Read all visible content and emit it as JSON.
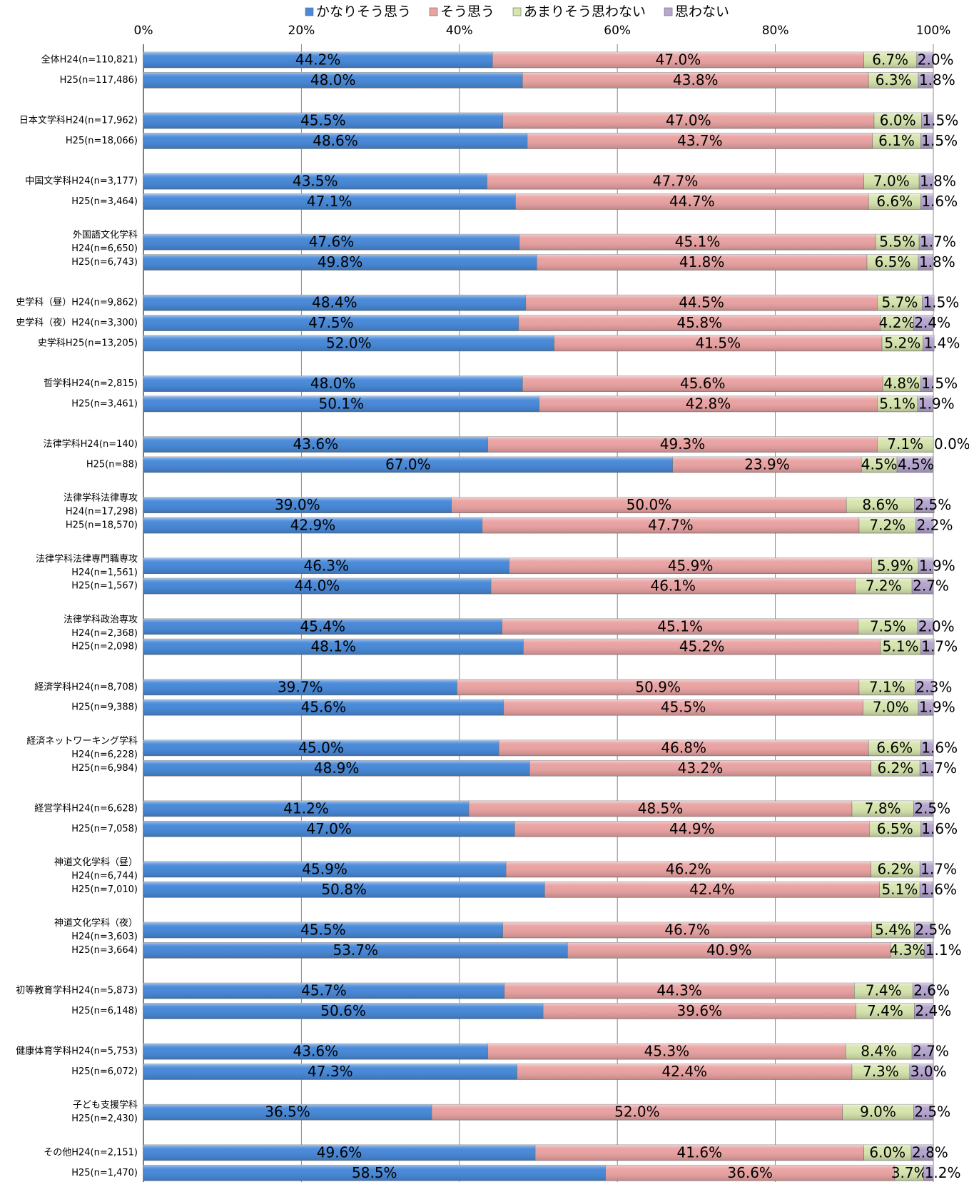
{
  "chart_data": {
    "type": "stacked-bar-horizontal",
    "categories": [
      "全体H24(n=110,821)",
      "H25(n=117,486)",
      "日本文学科H24(n=17,962)",
      "H25(n=18,066)",
      "中国文学科H24(n=3,177)",
      "H25(n=3,464)",
      [
        "外国語文化学科",
        "H24(n=6,650)"
      ],
      "H25(n=6,743)",
      "史学科（昼）H24(n=9,862)",
      "史学科（夜）H24(n=3,300)",
      "史学科H25(n=13,205)",
      "哲学科H24(n=2,815)",
      "H25(n=3,461)",
      "法律学科H24(n=140)",
      "H25(n=88)",
      [
        "法律学科法律専攻",
        "H24(n=17,298)"
      ],
      "H25(n=18,570)",
      [
        "法律学科法律専門職専攻",
        "H24(n=1,561)"
      ],
      "H25(n=1,567)",
      [
        "法律学科政治専攻",
        "H24(n=2,368)"
      ],
      "H25(n=2,098)",
      "経済学科H24(n=8,708)",
      "H25(n=9,388)",
      [
        "経済ネットワーキング学科",
        "H24(n=6,228)"
      ],
      "H25(n=6,984)",
      "経営学科H24(n=6,628)",
      "H25(n=7,058)",
      [
        "神道文化学科（昼）",
        "H24(n=6,744)"
      ],
      "H25(n=7,010)",
      [
        "神道文化学科（夜）",
        "H24(n=3,603)"
      ],
      "H25(n=3,664)",
      "初等教育学科H24(n=5,873)",
      "H25(n=6,148)",
      "健康体育学科H24(n=5,753)",
      "H25(n=6,072)",
      [
        "子ども支援学科",
        "H25(n=2,430)"
      ],
      "その他H24(n=2,151)",
      "H25(n=1,470)"
    ],
    "series": [
      {
        "name": "かなりそう思う",
        "color": "#4a8ad8",
        "values": [
          44.2,
          48.0,
          45.5,
          48.6,
          43.5,
          47.1,
          47.6,
          49.8,
          48.4,
          47.5,
          52.0,
          48.0,
          50.1,
          43.6,
          67.0,
          39.0,
          42.9,
          46.3,
          44.0,
          45.4,
          48.1,
          39.7,
          45.6,
          45.0,
          48.9,
          41.2,
          47.0,
          45.9,
          50.8,
          45.5,
          53.7,
          45.7,
          50.6,
          43.6,
          47.3,
          36.5,
          49.6,
          58.5
        ],
        "value_labels": [
          "44.2%",
          "48.0%",
          "45.5%",
          "48.6%",
          "43.5%",
          "47.1%",
          "47.6%",
          "49.8%",
          "48.4%",
          "47.5%",
          "52.0%",
          "48.0%",
          "50.1%",
          "43.6%",
          "67.0%",
          "39.0%",
          "42.9%",
          "46.3%",
          "44.0%",
          "45.4%",
          "48.1%",
          "39.7%",
          "45.6%",
          "45.0%",
          "48.9%",
          "41.2%",
          "47.0%",
          "45.9%",
          "50.8%",
          "45.5%",
          "53.7%",
          "45.7%",
          "50.6%",
          "43.6%",
          "47.3%",
          "36.5%",
          "49.6%",
          "58.5%"
        ]
      },
      {
        "name": "そう思う",
        "color": "#e9a3a3",
        "values": [
          47.0,
          43.8,
          47.0,
          43.7,
          47.7,
          44.7,
          45.1,
          41.8,
          44.5,
          45.8,
          41.5,
          45.6,
          42.8,
          49.3,
          23.9,
          50.0,
          47.7,
          45.9,
          46.1,
          45.1,
          45.2,
          50.9,
          45.5,
          46.8,
          43.2,
          48.5,
          44.9,
          46.2,
          42.4,
          46.7,
          40.9,
          44.3,
          39.6,
          45.3,
          42.4,
          52.0,
          41.6,
          36.6
        ],
        "value_labels": [
          "47.0%",
          "43.8%",
          "47.0%",
          "43.7%",
          "47.7%",
          "44.7%",
          "45.1%",
          "41.8%",
          "44.5%",
          "45.8%",
          "41.5%",
          "45.6%",
          "42.8%",
          "49.3%",
          "23.9%",
          "50.0%",
          "47.7%",
          "45.9%",
          "46.1%",
          "45.1%",
          "45.2%",
          "50.9%",
          "45.5%",
          "46.8%",
          "43.2%",
          "48.5%",
          "44.9%",
          "46.2%",
          "42.4%",
          "46.7%",
          "40.9%",
          "44.3%",
          "39.6%",
          "45.3%",
          "42.4%",
          "52.0%",
          "41.6%",
          "36.6%"
        ]
      },
      {
        "name": "あまりそう思わない",
        "color": "#d6e4ae",
        "values": [
          6.7,
          6.3,
          6.0,
          6.1,
          7.0,
          6.6,
          5.5,
          6.5,
          5.7,
          4.2,
          5.2,
          4.8,
          5.1,
          7.1,
          4.5,
          8.6,
          7.2,
          5.9,
          7.2,
          7.5,
          5.1,
          7.1,
          7.0,
          6.6,
          6.2,
          7.8,
          6.5,
          6.2,
          5.1,
          5.4,
          4.3,
          7.4,
          7.4,
          8.4,
          7.3,
          9.0,
          6.0,
          3.7
        ],
        "value_labels": [
          "6.7%",
          "6.3%",
          "6.0%",
          "6.1%",
          "7.0%",
          "6.6%",
          "5.5%",
          "6.5%",
          "5.7%",
          "4.2%",
          "5.2%",
          "4.8%",
          "5.1%",
          "7.1%",
          "4.5%",
          "8.6%",
          "7.2%",
          "5.9%",
          "7.2%",
          "7.5%",
          "5.1%",
          "7.1%",
          "7.0%",
          "6.6%",
          "6.2%",
          "7.8%",
          "6.5%",
          "6.2%",
          "5.1%",
          "5.4%",
          "4.3%",
          "7.4%",
          "7.4%",
          "8.4%",
          "7.3%",
          "9.0%",
          "6.0%",
          "3.7%"
        ]
      },
      {
        "name": "思わない",
        "color": "#b6a6d0",
        "values": [
          2.0,
          1.8,
          1.5,
          1.5,
          1.8,
          1.6,
          1.7,
          1.8,
          1.5,
          2.4,
          1.4,
          1.5,
          1.9,
          0.0,
          4.5,
          2.5,
          2.2,
          1.9,
          2.7,
          2.0,
          1.7,
          2.3,
          1.9,
          1.6,
          1.7,
          2.5,
          1.6,
          1.7,
          1.6,
          2.5,
          1.1,
          2.6,
          2.4,
          2.7,
          3.0,
          2.5,
          2.8,
          1.2
        ],
        "value_labels": [
          "2.0%",
          "1.8%",
          "1.5%",
          "1.5%",
          "1.8%",
          "1.6%",
          "1.7%",
          "1.8%",
          "1.5%",
          "2.4%",
          "1.4%",
          "1.5%",
          "1.9%",
          "0.0%",
          "4.5%",
          "2.5%",
          "2.2%",
          "1.9%",
          "2.7%",
          "2.0%",
          "1.7%",
          "2.3%",
          "1.9%",
          "1.6%",
          "1.7%",
          "2.5%",
          "1.6%",
          "1.7%",
          "1.6%",
          "2.5%",
          "1.1%",
          "2.6%",
          "2.4%",
          "2.7%",
          "3.0%",
          "2.5%",
          "2.8%",
          "1.2%"
        ]
      }
    ],
    "xlim": [
      0,
      100
    ],
    "xticks": [
      {
        "value": 0,
        "label": "0%"
      },
      {
        "value": 20,
        "label": "20%"
      },
      {
        "value": 40,
        "label": "40%"
      },
      {
        "value": 60,
        "label": "60%"
      },
      {
        "value": 80,
        "label": "80%"
      },
      {
        "value": 100,
        "label": "100%"
      }
    ],
    "grid": true,
    "legend": "top"
  }
}
